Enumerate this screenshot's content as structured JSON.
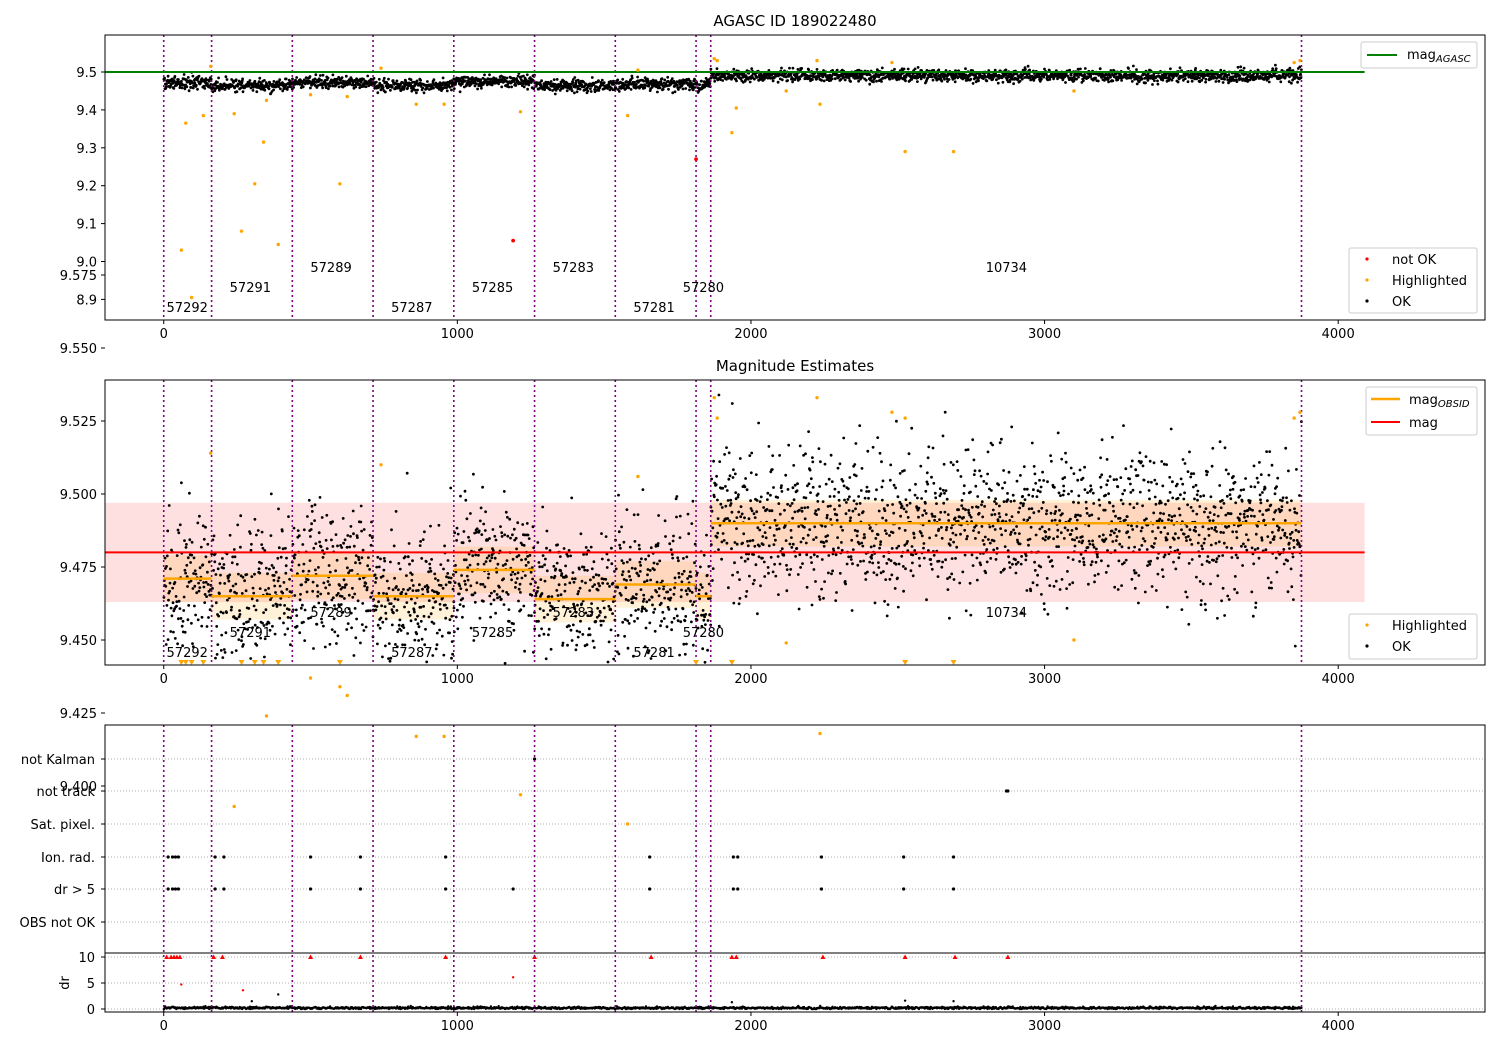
{
  "chart_data": [
    {
      "type": "scatter",
      "title": "AGASC ID 189022480",
      "xlabel": "",
      "ylabel": "",
      "xlim": [
        -200,
        4500
      ],
      "ylim": [
        8.845,
        9.6
      ],
      "xticks": [
        0,
        1000,
        2000,
        3000,
        4000
      ],
      "yticks": [
        8.9,
        9.0,
        9.1,
        9.2,
        9.3,
        9.4,
        9.5
      ],
      "ytick_labels": [
        "8.9",
        "9.0",
        "9.1",
        "9.2",
        "9.3",
        "9.4",
        "9.5"
      ],
      "reference_lines": [
        {
          "name": "mag_AGASC",
          "y": 9.5,
          "x": [
            -200,
            4090
          ],
          "color": "#008000"
        }
      ],
      "obsid_boundaries": [
        0,
        163,
        438,
        713,
        988,
        1263,
        1538,
        1813,
        1863,
        3875
      ],
      "obsid_labels": [
        {
          "text": "57292",
          "x": 80,
          "row": 2
        },
        {
          "text": "57291",
          "x": 295,
          "row": 1
        },
        {
          "text": "57289",
          "x": 570,
          "row": 0
        },
        {
          "text": "57287",
          "x": 845,
          "row": 2
        },
        {
          "text": "57285",
          "x": 1120,
          "row": 1
        },
        {
          "text": "57283",
          "x": 1395,
          "row": 0
        },
        {
          "text": "57281",
          "x": 1670,
          "row": 2
        },
        {
          "text": "57280",
          "x": 1838,
          "row": 1
        },
        {
          "text": "10734",
          "x": 2870,
          "row": 0
        }
      ],
      "segments": [
        {
          "x0": 0,
          "x1": 163,
          "mean": 9.471,
          "spread": 0.008
        },
        {
          "x0": 163,
          "x1": 438,
          "mean": 9.465,
          "spread": 0.008
        },
        {
          "x0": 438,
          "x1": 713,
          "mean": 9.472,
          "spread": 0.008
        },
        {
          "x0": 713,
          "x1": 988,
          "mean": 9.465,
          "spread": 0.008
        },
        {
          "x0": 988,
          "x1": 1263,
          "mean": 9.474,
          "spread": 0.008
        },
        {
          "x0": 1263,
          "x1": 1538,
          "mean": 9.464,
          "spread": 0.008
        },
        {
          "x0": 1538,
          "x1": 1813,
          "mean": 9.469,
          "spread": 0.008
        },
        {
          "x0": 1813,
          "x1": 1863,
          "mean": 9.465,
          "spread": 0.008
        },
        {
          "x0": 1863,
          "x1": 3875,
          "mean": 9.49,
          "spread": 0.008
        }
      ],
      "series": [
        {
          "name": "not OK",
          "color": "#ff0000",
          "x": [
            1190,
            1813
          ],
          "y": [
            9.055,
            9.27
          ]
        },
        {
          "name": "Highlighted",
          "color": "#ffa500",
          "x": [
            60,
            75,
            95,
            135,
            160,
            240,
            265,
            310,
            340,
            350,
            390,
            500,
            600,
            625,
            740,
            860,
            955,
            1215,
            1580,
            1615,
            1875,
            1885,
            1935,
            1950,
            2120,
            2225,
            2235,
            2480,
            2525,
            2690,
            3100,
            3850,
            3870
          ],
          "y": [
            9.03,
            9.365,
            8.905,
            9.385,
            9.515,
            9.39,
            9.08,
            9.205,
            9.315,
            9.425,
            9.045,
            9.44,
            9.205,
            9.435,
            9.51,
            9.415,
            9.415,
            9.395,
            9.385,
            9.505,
            9.535,
            9.53,
            9.34,
            9.405,
            9.45,
            9.53,
            9.415,
            9.525,
            9.29,
            9.29,
            9.45,
            9.525,
            9.53
          ]
        },
        {
          "name": "OK",
          "color": "#000000"
        }
      ],
      "legend": [
        {
          "name": "mag_AGASC",
          "position": "upper-right",
          "entries": [
            {
              "label": "mag",
              "subscript": "AGASC",
              "type": "line",
              "color": "#008000"
            }
          ]
        },
        {
          "position": "lower-right",
          "entries": [
            {
              "label": "not OK",
              "type": "dot",
              "color": "#ff0000"
            },
            {
              "label": "Highlighted",
              "type": "dot",
              "color": "#ffa500"
            },
            {
              "label": "OK",
              "type": "dot",
              "color": "#000000"
            }
          ]
        }
      ]
    },
    {
      "type": "scatter",
      "title": "Magnitude Estimates",
      "xlabel": "",
      "ylabel": "",
      "xlim": [
        -200,
        4500
      ],
      "ylim": [
        9.383,
        9.579
      ],
      "xticks": [
        0,
        1000,
        2000,
        3000,
        4000
      ],
      "yticks": [
        9.4,
        9.425,
        9.45,
        9.475,
        9.5,
        9.525,
        9.55,
        9.575
      ],
      "ytick_labels": [
        "9.400",
        "9.425",
        "9.450",
        "9.475",
        "9.500",
        "9.525",
        "9.550",
        "9.575"
      ],
      "mag": {
        "value": 9.48,
        "band": [
          9.463,
          9.497
        ],
        "x": [
          -200,
          4090
        ],
        "color": "#ff0000"
      },
      "mag_obsid": [
        {
          "x0": 0,
          "x1": 163,
          "y": 9.471,
          "band": [
            9.463,
            9.479
          ]
        },
        {
          "x0": 163,
          "x1": 438,
          "y": 9.465,
          "band": [
            9.457,
            9.473
          ]
        },
        {
          "x0": 438,
          "x1": 713,
          "y": 9.472,
          "band": [
            9.464,
            9.48
          ]
        },
        {
          "x0": 713,
          "x1": 988,
          "y": 9.465,
          "band": [
            9.457,
            9.473
          ]
        },
        {
          "x0": 988,
          "x1": 1263,
          "y": 9.474,
          "band": [
            9.466,
            9.482
          ]
        },
        {
          "x0": 1263,
          "x1": 1538,
          "y": 9.464,
          "band": [
            9.456,
            9.472
          ]
        },
        {
          "x0": 1538,
          "x1": 1813,
          "y": 9.469,
          "band": [
            9.461,
            9.477
          ]
        },
        {
          "x0": 1813,
          "x1": 1863,
          "y": 9.465,
          "band": [
            9.457,
            9.473
          ]
        },
        {
          "x0": 1863,
          "x1": 3875,
          "y": 9.49,
          "band": [
            9.482,
            9.498
          ]
        }
      ],
      "obsid_boundaries": [
        0,
        163,
        438,
        713,
        988,
        1263,
        1538,
        1813,
        1863,
        3875
      ],
      "obsid_labels": [
        {
          "text": "57292",
          "x": 80,
          "row": 2
        },
        {
          "text": "57291",
          "x": 295,
          "row": 1
        },
        {
          "text": "57289",
          "x": 570,
          "row": 0
        },
        {
          "text": "57287",
          "x": 845,
          "row": 2
        },
        {
          "text": "57285",
          "x": 1120,
          "row": 1
        },
        {
          "text": "57283",
          "x": 1395,
          "row": 0
        },
        {
          "text": "57281",
          "x": 1670,
          "row": 2
        },
        {
          "text": "57280",
          "x": 1838,
          "row": 1
        },
        {
          "text": "10734",
          "x": 2870,
          "row": 0
        }
      ],
      "segments": [
        {
          "x0": 0,
          "x1": 163,
          "mean": 9.471,
          "spread": 0.012
        },
        {
          "x0": 163,
          "x1": 438,
          "mean": 9.465,
          "spread": 0.012
        },
        {
          "x0": 438,
          "x1": 713,
          "mean": 9.472,
          "spread": 0.012
        },
        {
          "x0": 713,
          "x1": 988,
          "mean": 9.465,
          "spread": 0.012
        },
        {
          "x0": 988,
          "x1": 1263,
          "mean": 9.474,
          "spread": 0.012
        },
        {
          "x0": 1263,
          "x1": 1538,
          "mean": 9.464,
          "spread": 0.012
        },
        {
          "x0": 1538,
          "x1": 1813,
          "mean": 9.469,
          "spread": 0.012
        },
        {
          "x0": 1813,
          "x1": 1863,
          "mean": 9.465,
          "spread": 0.012
        },
        {
          "x0": 1863,
          "x1": 3875,
          "mean": 9.49,
          "spread": 0.013
        }
      ],
      "series": [
        {
          "name": "Highlighted",
          "color": "#ffa500",
          "x": [
            160,
            240,
            350,
            500,
            600,
            625,
            740,
            860,
            955,
            1215,
            1580,
            1615,
            1875,
            1885,
            2120,
            2225,
            2235,
            2480,
            2525,
            3100,
            3850,
            3870
          ],
          "y": [
            9.514,
            9.393,
            9.424,
            9.437,
            9.434,
            9.431,
            9.51,
            9.417,
            9.417,
            9.397,
            9.387,
            9.506,
            9.533,
            9.526,
            9.449,
            9.533,
            9.418,
            9.528,
            9.526,
            9.45,
            9.526,
            9.528
          ]
        },
        {
          "name": "Highlighted (below axis)",
          "color": "#ffa500",
          "marker": "triangle-down",
          "x": [
            60,
            75,
            95,
            135,
            265,
            310,
            340,
            390,
            600,
            1813,
            1935,
            2525,
            2690
          ]
        },
        {
          "name": "OK",
          "color": "#000000"
        }
      ],
      "legend": [
        {
          "position": "upper-right",
          "entries": [
            {
              "label": "mag",
              "subscript": "OBSID",
              "type": "line",
              "color": "#ffa500"
            },
            {
              "label": "mag",
              "type": "line",
              "color": "#ff0000"
            }
          ]
        },
        {
          "position": "lower-right",
          "entries": [
            {
              "label": "Highlighted",
              "type": "dot",
              "color": "#ffa500"
            },
            {
              "label": "OK",
              "type": "dot",
              "color": "#000000"
            }
          ]
        }
      ]
    },
    {
      "type": "scatter",
      "title": "",
      "xlim": [
        -200,
        4500
      ],
      "xticks": [
        0,
        1000,
        2000,
        3000,
        4000
      ],
      "flag_rows": [
        "not Kalman",
        "not track",
        "Sat. pixel.",
        "Ion. rad.",
        "dr > 5",
        "OBS not OK"
      ],
      "flags": {
        "not Kalman": [
          1263
        ],
        "not track": [
          2870,
          2875
        ],
        "Sat. pixel.": [],
        "Ion. rad.": [
          15,
          30,
          40,
          50,
          175,
          205,
          500,
          670,
          960,
          1655,
          1940,
          1955,
          2240,
          2520,
          2690
        ],
        "dr > 5": [
          15,
          30,
          40,
          50,
          175,
          205,
          500,
          670,
          960,
          1190,
          1655,
          1940,
          1955,
          2240,
          2520,
          2690
        ],
        "OBS not OK": []
      },
      "obsid_boundaries": [
        0,
        163,
        438,
        713,
        988,
        1263,
        1538,
        1813,
        1863,
        3875
      ],
      "dr": {
        "ylabel": "dr",
        "ylim": [
          -0.5,
          11
        ],
        "yticks": [
          0,
          5,
          10
        ],
        "ytick_labels": [
          "0",
          "5",
          "10"
        ],
        "clipped_x": [
          10,
          25,
          35,
          45,
          55,
          170,
          200,
          500,
          670,
          960,
          1263,
          1660,
          1935,
          1950,
          2245,
          2525,
          2695,
          2875
        ],
        "clipped_y": 10,
        "outliers_x": [
          60,
          270,
          1190,
          300,
          390,
          2525,
          2690,
          1935
        ],
        "outliers_y": [
          4.7,
          3.6,
          6.1,
          1.5,
          2.8,
          1.6,
          1.5,
          1.3
        ],
        "baseline": {
          "mean": 0.2,
          "spread": 0.12
        }
      }
    }
  ]
}
